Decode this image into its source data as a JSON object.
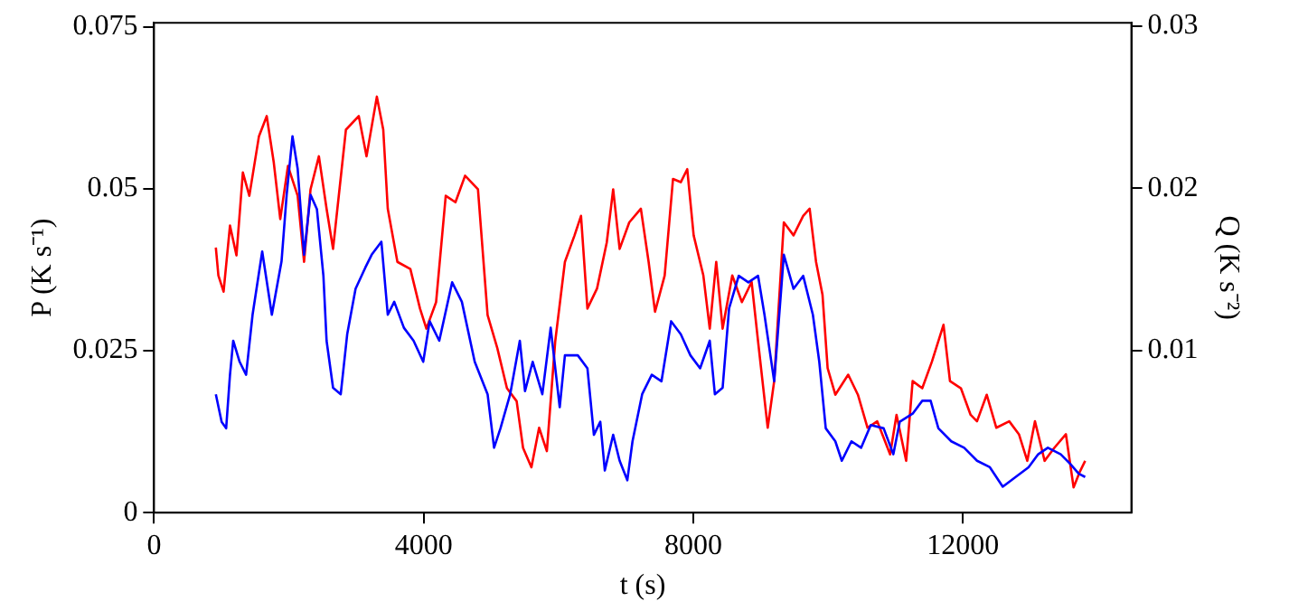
{
  "chart_data": {
    "type": "line",
    "xlabel": "t (s)",
    "ylabel": "P (K s⁻¹)",
    "y2label": "Q (K s⁻²)",
    "xlim": [
      0,
      14500
    ],
    "xticks": [
      0,
      4000,
      8000,
      12000
    ],
    "ylim": [
      0,
      0.0756
    ],
    "yticks": [
      0,
      0.025,
      0.05,
      0.075
    ],
    "y2lim": [
      0,
      0.0302
    ],
    "y2ticks": [
      0.01,
      0.02,
      0.03
    ],
    "grid": false,
    "legend": false,
    "marker": "none",
    "line_style": "solid",
    "series": [
      {
        "color": "#ff0000",
        "x": [
          917,
          955,
          1032,
          1127,
          1223,
          1318,
          1414,
          1557,
          1672,
          1777,
          1873,
          1987,
          2131,
          2226,
          2322,
          2446,
          2560,
          2656,
          2847,
          3038,
          3153,
          3306,
          3401,
          3468,
          3611,
          3803,
          3946,
          4041,
          4185,
          4328,
          4472,
          4615,
          4806,
          4949,
          5093,
          5236,
          5380,
          5475,
          5599,
          5713,
          5828,
          5952,
          6096,
          6239,
          6335,
          6430,
          6573,
          6717,
          6812,
          6908,
          7051,
          7223,
          7338,
          7433,
          7576,
          7700,
          7815,
          7911,
          8006,
          8150,
          8245,
          8341,
          8436,
          8579,
          8722,
          8866,
          8962,
          9105,
          9201,
          9344,
          9488,
          9631,
          9727,
          9822,
          9918,
          9994,
          10108,
          10299,
          10443,
          10586,
          10730,
          10921,
          11016,
          11159,
          11255,
          11398,
          11541,
          11713,
          11809,
          11971,
          12115,
          12210,
          12354,
          12497,
          12688,
          12832,
          12956,
          13070,
          13213,
          13357,
          13529,
          13643,
          13739,
          13815
        ],
        "values": [
          0.0409,
          0.0366,
          0.0341,
          0.0443,
          0.0397,
          0.0525,
          0.0489,
          0.0581,
          0.0612,
          0.054,
          0.0453,
          0.0535,
          0.0489,
          0.0387,
          0.0499,
          0.055,
          0.0469,
          0.0407,
          0.0591,
          0.0612,
          0.055,
          0.0642,
          0.0591,
          0.0469,
          0.0387,
          0.0376,
          0.0315,
          0.0284,
          0.0325,
          0.0489,
          0.0479,
          0.052,
          0.0499,
          0.0305,
          0.0254,
          0.0192,
          0.0172,
          0.01,
          0.007,
          0.0131,
          0.0095,
          0.0264,
          0.0387,
          0.0428,
          0.0458,
          0.0315,
          0.0346,
          0.0417,
          0.0499,
          0.0407,
          0.0448,
          0.0469,
          0.0387,
          0.031,
          0.0366,
          0.0515,
          0.051,
          0.053,
          0.0428,
          0.0366,
          0.0284,
          0.0387,
          0.0284,
          0.0366,
          0.0325,
          0.0356,
          0.0264,
          0.0131,
          0.0203,
          0.0448,
          0.0428,
          0.0458,
          0.0469,
          0.0387,
          0.0336,
          0.0223,
          0.0182,
          0.0213,
          0.0182,
          0.0131,
          0.0141,
          0.009,
          0.0151,
          0.008,
          0.0203,
          0.0192,
          0.0233,
          0.029,
          0.0203,
          0.0192,
          0.0151,
          0.0141,
          0.0182,
          0.0131,
          0.0141,
          0.0121,
          0.008,
          0.0141,
          0.008,
          0.01,
          0.0121,
          0.0039,
          0.0064,
          0.008
        ]
      },
      {
        "color": "#0000ff",
        "axis": "y2",
        "x": [
          917,
          1003,
          1070,
          1127,
          1175,
          1270,
          1366,
          1462,
          1605,
          1748,
          1892,
          1968,
          2054,
          2131,
          2226,
          2322,
          2417,
          2513,
          2560,
          2656,
          2770,
          2866,
          2990,
          3134,
          3229,
          3373,
          3468,
          3564,
          3707,
          3851,
          3994,
          4089,
          4232,
          4423,
          4567,
          4758,
          4949,
          5045,
          5140,
          5284,
          5427,
          5504,
          5618,
          5761,
          5885,
          6019,
          6096,
          6287,
          6430,
          6526,
          6621,
          6688,
          6812,
          6908,
          7022,
          7099,
          7242,
          7385,
          7529,
          7672,
          7815,
          7958,
          8102,
          8245,
          8321,
          8436,
          8532,
          8675,
          8818,
          8962,
          9057,
          9201,
          9344,
          9488,
          9631,
          9775,
          9870,
          9966,
          10108,
          10204,
          10347,
          10490,
          10634,
          10825,
          10969,
          11064,
          11255,
          11398,
          11522,
          11637,
          11828,
          12019,
          12210,
          12401,
          12592,
          12783,
          12975,
          13118,
          13261,
          13452,
          13595,
          13720,
          13815
        ],
        "values": [
          0.0073,
          0.0056,
          0.0052,
          0.0085,
          0.0106,
          0.0093,
          0.0085,
          0.0122,
          0.0161,
          0.0122,
          0.0155,
          0.0196,
          0.0232,
          0.0212,
          0.0159,
          0.0196,
          0.0187,
          0.0146,
          0.0106,
          0.0077,
          0.0073,
          0.011,
          0.0138,
          0.0151,
          0.0159,
          0.0167,
          0.0122,
          0.013,
          0.0114,
          0.0106,
          0.0093,
          0.0118,
          0.0106,
          0.0142,
          0.013,
          0.0093,
          0.0073,
          0.004,
          0.0052,
          0.0073,
          0.0106,
          0.0075,
          0.0093,
          0.0073,
          0.0114,
          0.0065,
          0.0097,
          0.0097,
          0.0089,
          0.0048,
          0.0056,
          0.0026,
          0.0048,
          0.0032,
          0.002,
          0.0044,
          0.0073,
          0.0085,
          0.0081,
          0.0118,
          0.011,
          0.0097,
          0.0089,
          0.0106,
          0.0073,
          0.0077,
          0.0126,
          0.0146,
          0.0142,
          0.0146,
          0.0122,
          0.0081,
          0.0159,
          0.0138,
          0.0146,
          0.0122,
          0.0093,
          0.0052,
          0.0044,
          0.0032,
          0.0044,
          0.004,
          0.0054,
          0.0052,
          0.0036,
          0.0056,
          0.0061,
          0.0069,
          0.0069,
          0.0052,
          0.0044,
          0.004,
          0.0032,
          0.0028,
          0.0016,
          0.0022,
          0.0028,
          0.0036,
          0.004,
          0.0036,
          0.003,
          0.0024,
          0.0022
        ]
      }
    ]
  }
}
